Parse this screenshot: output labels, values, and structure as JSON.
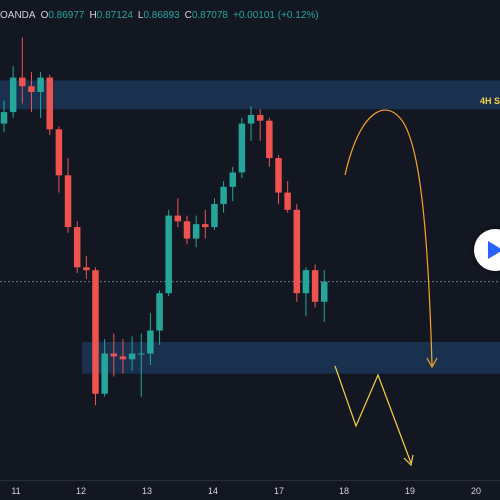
{
  "header": {
    "broker": "OANDA",
    "ohlc": [
      {
        "key": "O",
        "value": "0.86977"
      },
      {
        "key": "H",
        "value": "0.87124"
      },
      {
        "key": "L",
        "value": "0.86893"
      },
      {
        "key": "C",
        "value": "0.87078"
      }
    ],
    "change": "+0.00101 (+0.12%)"
  },
  "zone_label": "4H S",
  "icons": {
    "play": "play-icon"
  },
  "colors": {
    "background": "#131722",
    "bull": "#26a69a",
    "bear": "#ef5350",
    "zone": "#1e3a5f",
    "orange_arrow": "#f5a623",
    "yellow_arrow": "#f5d142"
  },
  "x_axis": {
    "labels": [
      "11",
      "12",
      "13",
      "14",
      "17",
      "18",
      "19",
      "20"
    ]
  },
  "chart_data": {
    "type": "candlestick",
    "x_ticks": [
      "11",
      "12",
      "13",
      "14",
      "17",
      "18",
      "19",
      "20"
    ],
    "candles": [
      {
        "o": 0.87,
        "h": 0.8708,
        "l": 0.8697,
        "c": 0.8704
      },
      {
        "o": 0.8704,
        "h": 0.872,
        "l": 0.8702,
        "c": 0.8716
      },
      {
        "o": 0.8716,
        "h": 0.873,
        "l": 0.8707,
        "c": 0.8713
      },
      {
        "o": 0.8713,
        "h": 0.8718,
        "l": 0.8704,
        "c": 0.8711
      },
      {
        "o": 0.8711,
        "h": 0.8718,
        "l": 0.8702,
        "c": 0.8716
      },
      {
        "o": 0.8716,
        "h": 0.8717,
        "l": 0.8696,
        "c": 0.8698
      },
      {
        "o": 0.8698,
        "h": 0.8699,
        "l": 0.8676,
        "c": 0.8682
      },
      {
        "o": 0.8682,
        "h": 0.8688,
        "l": 0.8662,
        "c": 0.8664
      },
      {
        "o": 0.8664,
        "h": 0.8666,
        "l": 0.8648,
        "c": 0.865
      },
      {
        "o": 0.865,
        "h": 0.8654,
        "l": 0.8646,
        "c": 0.8649
      },
      {
        "o": 0.8649,
        "h": 0.865,
        "l": 0.8602,
        "c": 0.8606
      },
      {
        "o": 0.8606,
        "h": 0.8625,
        "l": 0.8605,
        "c": 0.862
      },
      {
        "o": 0.862,
        "h": 0.8627,
        "l": 0.8612,
        "c": 0.8619
      },
      {
        "o": 0.8619,
        "h": 0.8625,
        "l": 0.8613,
        "c": 0.8618
      },
      {
        "o": 0.8618,
        "h": 0.8626,
        "l": 0.8614,
        "c": 0.862
      },
      {
        "o": 0.862,
        "h": 0.8627,
        "l": 0.8605,
        "c": 0.862
      },
      {
        "o": 0.862,
        "h": 0.8634,
        "l": 0.8616,
        "c": 0.8628
      },
      {
        "o": 0.8628,
        "h": 0.8642,
        "l": 0.8623,
        "c": 0.8641
      },
      {
        "o": 0.8641,
        "h": 0.867,
        "l": 0.864,
        "c": 0.8668
      },
      {
        "o": 0.8668,
        "h": 0.8674,
        "l": 0.8664,
        "c": 0.8666
      },
      {
        "o": 0.8666,
        "h": 0.8668,
        "l": 0.8658,
        "c": 0.866
      },
      {
        "o": 0.866,
        "h": 0.8668,
        "l": 0.8657,
        "c": 0.8665
      },
      {
        "o": 0.8665,
        "h": 0.867,
        "l": 0.866,
        "c": 0.8664
      },
      {
        "o": 0.8664,
        "h": 0.8674,
        "l": 0.8663,
        "c": 0.8672
      },
      {
        "o": 0.8672,
        "h": 0.868,
        "l": 0.8669,
        "c": 0.8678
      },
      {
        "o": 0.8678,
        "h": 0.8685,
        "l": 0.8673,
        "c": 0.8683
      },
      {
        "o": 0.8683,
        "h": 0.8702,
        "l": 0.8681,
        "c": 0.87
      },
      {
        "o": 0.87,
        "h": 0.8706,
        "l": 0.8694,
        "c": 0.8703
      },
      {
        "o": 0.8703,
        "h": 0.8705,
        "l": 0.8694,
        "c": 0.8701
      },
      {
        "o": 0.8701,
        "h": 0.8702,
        "l": 0.8685,
        "c": 0.8688
      },
      {
        "o": 0.8688,
        "h": 0.8689,
        "l": 0.8672,
        "c": 0.8676
      },
      {
        "o": 0.8676,
        "h": 0.868,
        "l": 0.8669,
        "c": 0.867
      },
      {
        "o": 0.867,
        "h": 0.8672,
        "l": 0.8638,
        "c": 0.8641
      },
      {
        "o": 0.8641,
        "h": 0.865,
        "l": 0.8633,
        "c": 0.8649
      },
      {
        "o": 0.8649,
        "h": 0.8651,
        "l": 0.8636,
        "c": 0.8638
      },
      {
        "o": 0.8638,
        "h": 0.8649,
        "l": 0.8631,
        "c": 0.8645
      }
    ],
    "zones": [
      {
        "label": "4H S",
        "top": 0.8715,
        "bottom": 0.8705
      },
      {
        "label": "",
        "top": 0.8624,
        "bottom": 0.8613
      }
    ],
    "current_price": 0.8645,
    "y_range": [
      0.8576,
      0.8743
    ]
  }
}
